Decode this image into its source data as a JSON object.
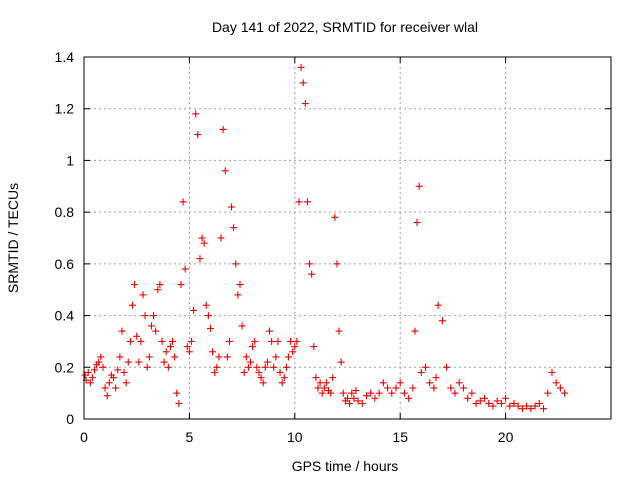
{
  "chart_data": {
    "type": "scatter",
    "title": "Day 141 of 2022, SRMTID for receiver wlal",
    "xlabel": "GPS time / hours",
    "ylabel": "SRMTID / TECUs",
    "xlim": [
      0,
      25
    ],
    "ylim": [
      0,
      1.4
    ],
    "xticks": [
      0,
      5,
      10,
      15,
      20
    ],
    "yticks": [
      0,
      0.2,
      0.4,
      0.6,
      0.8,
      1,
      1.2,
      1.4
    ],
    "xtick_labels": [
      "0",
      "5",
      "10",
      "15",
      "20"
    ],
    "ytick_labels": [
      "0",
      "0.2",
      "0.4",
      "0.6",
      "0.8",
      "1",
      "1.2",
      "1.4"
    ],
    "grid": true,
    "marker": "+",
    "color": "#ee0000",
    "series": [
      {
        "name": "wlal",
        "x": [
          0.05,
          0.1,
          0.2,
          0.3,
          0.4,
          0.5,
          0.6,
          0.7,
          0.8,
          0.9,
          1.0,
          1.1,
          1.2,
          1.3,
          1.4,
          1.5,
          1.6,
          1.7,
          1.8,
          1.9,
          2.0,
          2.1,
          2.2,
          2.3,
          2.4,
          2.5,
          2.6,
          2.7,
          2.8,
          2.9,
          3.0,
          3.1,
          3.2,
          3.3,
          3.4,
          3.5,
          3.6,
          3.7,
          3.8,
          3.9,
          4.0,
          4.1,
          4.2,
          4.3,
          4.4,
          4.5,
          4.6,
          4.7,
          4.8,
          4.9,
          5.0,
          5.1,
          5.2,
          5.3,
          5.4,
          5.5,
          5.6,
          5.7,
          5.8,
          5.9,
          6.0,
          6.1,
          6.2,
          6.3,
          6.4,
          6.5,
          6.6,
          6.7,
          6.8,
          6.9,
          7.0,
          7.1,
          7.2,
          7.3,
          7.4,
          7.5,
          7.6,
          7.7,
          7.8,
          7.9,
          8.0,
          8.1,
          8.2,
          8.3,
          8.4,
          8.5,
          8.6,
          8.7,
          8.8,
          8.9,
          9.0,
          9.1,
          9.2,
          9.3,
          9.4,
          9.5,
          9.6,
          9.7,
          9.8,
          9.9,
          10.0,
          10.1,
          10.2,
          10.3,
          10.4,
          10.5,
          10.6,
          10.7,
          10.8,
          10.9,
          11.0,
          11.1,
          11.2,
          11.3,
          11.4,
          11.5,
          11.6,
          11.7,
          11.8,
          11.9,
          12.0,
          12.1,
          12.2,
          12.3,
          12.4,
          12.5,
          12.6,
          12.7,
          12.8,
          12.9,
          13.0,
          13.2,
          13.4,
          13.6,
          13.8,
          14.0,
          14.2,
          14.4,
          14.6,
          14.8,
          15.0,
          15.2,
          15.4,
          15.6,
          15.7,
          15.8,
          15.9,
          16.0,
          16.2,
          16.4,
          16.6,
          16.7,
          16.8,
          17.0,
          17.2,
          17.4,
          17.6,
          17.8,
          18.0,
          18.2,
          18.4,
          18.6,
          18.8,
          19.0,
          19.2,
          19.4,
          19.6,
          19.8,
          20.0,
          20.2,
          20.4,
          20.6,
          20.8,
          21.0,
          21.2,
          21.4,
          21.6,
          21.8,
          22.0,
          22.2,
          22.4,
          22.6,
          22.8
        ],
        "y": [
          0.17,
          0.15,
          0.18,
          0.14,
          0.16,
          0.19,
          0.21,
          0.22,
          0.24,
          0.2,
          0.12,
          0.09,
          0.14,
          0.17,
          0.16,
          0.12,
          0.19,
          0.24,
          0.34,
          0.18,
          0.14,
          0.22,
          0.3,
          0.44,
          0.52,
          0.32,
          0.22,
          0.3,
          0.48,
          0.4,
          0.2,
          0.24,
          0.36,
          0.4,
          0.34,
          0.5,
          0.52,
          0.3,
          0.22,
          0.26,
          0.2,
          0.28,
          0.3,
          0.24,
          0.1,
          0.06,
          0.52,
          0.84,
          0.58,
          0.28,
          0.26,
          0.3,
          0.42,
          1.18,
          1.1,
          0.62,
          0.7,
          0.68,
          0.44,
          0.4,
          0.35,
          0.26,
          0.18,
          0.2,
          0.24,
          0.7,
          1.12,
          0.96,
          0.24,
          0.3,
          0.82,
          0.74,
          0.6,
          0.48,
          0.52,
          0.36,
          0.18,
          0.24,
          0.2,
          0.22,
          0.28,
          0.3,
          0.2,
          0.18,
          0.16,
          0.14,
          0.2,
          0.22,
          0.34,
          0.3,
          0.2,
          0.24,
          0.3,
          0.18,
          0.14,
          0.16,
          0.2,
          0.24,
          0.3,
          0.26,
          0.28,
          0.3,
          0.84,
          1.36,
          1.3,
          1.22,
          0.84,
          0.6,
          0.56,
          0.28,
          0.16,
          0.12,
          0.14,
          0.1,
          0.12,
          0.14,
          0.11,
          0.1,
          0.16,
          0.78,
          0.6,
          0.34,
          0.22,
          0.1,
          0.07,
          0.08,
          0.06,
          0.1,
          0.08,
          0.11,
          0.07,
          0.06,
          0.09,
          0.1,
          0.08,
          0.1,
          0.14,
          0.12,
          0.1,
          0.12,
          0.14,
          0.1,
          0.08,
          0.12,
          0.34,
          0.76,
          0.9,
          0.18,
          0.2,
          0.14,
          0.12,
          0.16,
          0.44,
          0.38,
          0.2,
          0.12,
          0.1,
          0.14,
          0.12,
          0.08,
          0.1,
          0.06,
          0.07,
          0.08,
          0.06,
          0.05,
          0.07,
          0.06,
          0.08,
          0.05,
          0.06,
          0.05,
          0.04,
          0.05,
          0.04,
          0.05,
          0.06,
          0.04,
          0.1,
          0.18,
          0.14,
          0.12,
          0.1
        ]
      }
    ]
  }
}
